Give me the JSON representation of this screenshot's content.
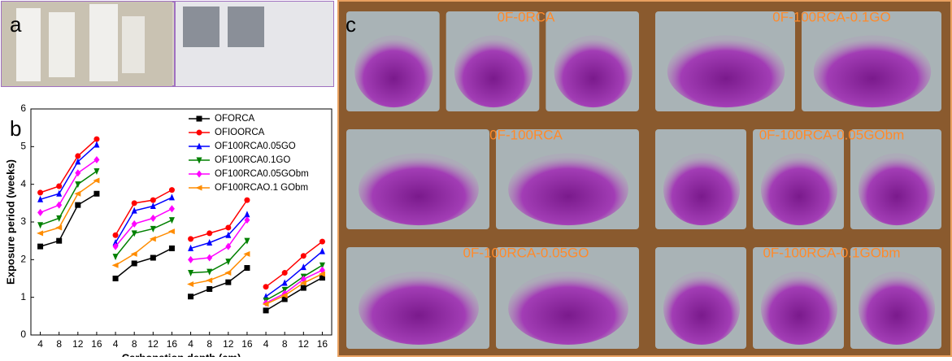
{
  "panels": {
    "a": "a",
    "b": "b",
    "c": "c"
  },
  "photo_labels": [
    "0F-0RCA",
    "0F-100RCA-0.1GO",
    "0F-100RCA",
    "0F-100RCA-0.05GObm",
    "0F-100RCA-0.05GO",
    "0F-100RCA-0.1GObm"
  ],
  "chart_data": {
    "type": "line",
    "x_label": "Carbonation depth (cm)",
    "y_label": "Exposure period (weeks)",
    "categories": [
      "4",
      "8",
      "12",
      "16",
      "4",
      "8",
      "12",
      "16",
      "4",
      "8",
      "12",
      "16",
      "4",
      "8",
      "12",
      "16"
    ],
    "ylim": [
      0,
      6
    ],
    "yticks": [
      0,
      1,
      2,
      3,
      4,
      5,
      6
    ],
    "legend": "upper-right",
    "series": [
      {
        "name": "OFORCA",
        "color": "#000000",
        "marker": "square",
        "values": [
          2.35,
          2.5,
          3.45,
          3.75,
          1.5,
          1.9,
          2.05,
          2.3,
          1.02,
          1.22,
          1.4,
          1.78,
          0.65,
          0.95,
          1.25,
          1.52
        ]
      },
      {
        "name": "OFIOORCA",
        "color": "#ff0000",
        "marker": "circle",
        "values": [
          3.78,
          3.95,
          4.75,
          5.2,
          2.65,
          3.5,
          3.58,
          3.85,
          2.55,
          2.7,
          2.85,
          3.58,
          1.28,
          1.65,
          2.1,
          2.48
        ]
      },
      {
        "name": "OF100RCA0.05GO",
        "color": "#0000ff",
        "marker": "triangle-up",
        "values": [
          3.6,
          3.75,
          4.6,
          5.05,
          2.45,
          3.3,
          3.42,
          3.65,
          2.3,
          2.45,
          2.65,
          3.2,
          1.02,
          1.38,
          1.8,
          2.22
        ]
      },
      {
        "name": "OF100RCA0.1GO",
        "color": "#008000",
        "marker": "triangle-down",
        "values": [
          2.92,
          3.1,
          4.0,
          4.35,
          2.08,
          2.7,
          2.82,
          3.05,
          1.65,
          1.68,
          1.95,
          2.5,
          0.92,
          1.2,
          1.55,
          1.85
        ]
      },
      {
        "name": "OF100RCA0.05GObm",
        "color": "#ff00ff",
        "marker": "diamond",
        "values": [
          3.25,
          3.45,
          4.3,
          4.65,
          2.35,
          2.95,
          3.1,
          3.35,
          2.0,
          2.05,
          2.35,
          3.05,
          0.85,
          1.1,
          1.48,
          1.72
        ]
      },
      {
        "name": "OF100RCAO.1 GObm",
        "color": "#ff8c00",
        "marker": "triangle-left",
        "values": [
          2.7,
          2.85,
          3.75,
          4.1,
          1.85,
          2.15,
          2.55,
          2.75,
          1.35,
          1.45,
          1.65,
          2.15,
          0.82,
          1.05,
          1.38,
          1.62
        ]
      }
    ]
  }
}
